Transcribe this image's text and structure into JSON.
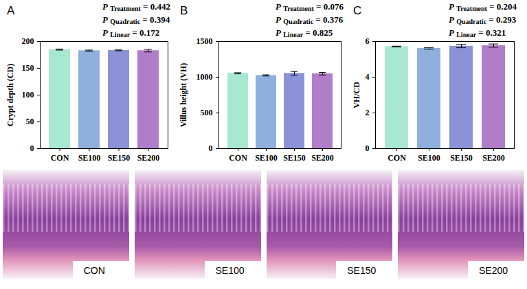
{
  "chart_data": [
    {
      "type": "bar",
      "panel_label": "A",
      "y_label": "Crypt depth (CD)",
      "categories": [
        "CON",
        "SE100",
        "SE150",
        "SE200"
      ],
      "values": [
        185,
        183,
        183.5,
        183
      ],
      "errors": [
        1,
        1,
        0.8,
        2.5
      ],
      "colors": [
        "#a8e8d0",
        "#8fb0dc",
        "#8c92d8",
        "#b07ec8"
      ],
      "ylim": [
        0,
        200
      ],
      "yticks": [
        0,
        50,
        100,
        150,
        200
      ],
      "annotations": [
        {
          "symbol": "P",
          "subscript": "Treatment",
          "text": "= 0.442"
        },
        {
          "symbol": "P",
          "subscript": "Quadratic",
          "text": "= 0.394"
        },
        {
          "symbol": "P",
          "subscript": "Linear",
          "text": "= 0.172"
        }
      ]
    },
    {
      "type": "bar",
      "panel_label": "B",
      "y_label": "Villus height (VH)",
      "categories": [
        "CON",
        "SE100",
        "SE150",
        "SE200"
      ],
      "values": [
        1055,
        1025,
        1055,
        1050
      ],
      "errors": [
        8,
        8,
        25,
        18
      ],
      "colors": [
        "#a8e8d0",
        "#8fb0dc",
        "#8c92d8",
        "#b07ec8"
      ],
      "ylim": [
        0,
        1500
      ],
      "yticks": [
        0,
        500,
        1000,
        1500
      ],
      "annotations": [
        {
          "symbol": "P",
          "subscript": "Treatment",
          "text": "= 0.076"
        },
        {
          "symbol": "P",
          "subscript": "Quadratic",
          "text": "= 0.376"
        },
        {
          "symbol": "P",
          "subscript": "Linear",
          "text": "= 0.825"
        }
      ]
    },
    {
      "type": "bar",
      "panel_label": "C",
      "y_label": "VH/CD",
      "categories": [
        "CON",
        "SE100",
        "SE150",
        "SE200"
      ],
      "values": [
        5.72,
        5.62,
        5.74,
        5.77
      ],
      "errors": [
        0.02,
        0.04,
        0.09,
        0.09
      ],
      "colors": [
        "#a8e8d0",
        "#8fb0dc",
        "#8c92d8",
        "#b07ec8"
      ],
      "ylim": [
        0,
        6
      ],
      "yticks": [
        0,
        2,
        4,
        6
      ],
      "annotations": [
        {
          "symbol": "P",
          "subscript": "Treatment",
          "text": "= 0.204"
        },
        {
          "symbol": "P",
          "subscript": "Quadratic",
          "text": "= 0.293"
        },
        {
          "symbol": "P",
          "subscript": "Linear",
          "text": "= 0.321"
        }
      ]
    }
  ],
  "image_panels": [
    "CON",
    "SE100",
    "SE150",
    "SE200"
  ]
}
